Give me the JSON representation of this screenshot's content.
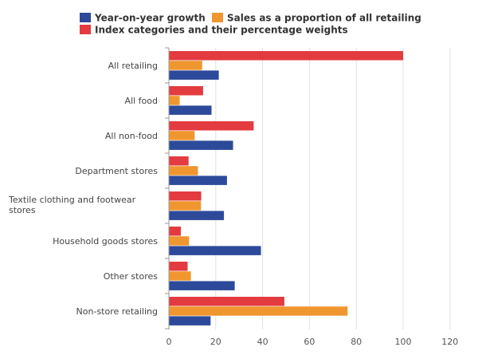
{
  "chart_data": {
    "type": "bar",
    "orientation": "horizontal",
    "categories": [
      "All retailing",
      "All food",
      "All non-food",
      "Department stores",
      "Textile clothing and footwear stores",
      "Household goods stores",
      "Other stores",
      "Non-store retailing"
    ],
    "series": [
      {
        "name": "Index categories and their percentage weights",
        "color": "#e33b3f",
        "values": [
          100,
          14.6,
          36.2,
          8.4,
          13.8,
          5.1,
          8.0,
          49.3
        ]
      },
      {
        "name": "Sales as a proportion of all retailing",
        "color": "#f0962f",
        "values": [
          14.2,
          4.6,
          11.0,
          12.4,
          13.7,
          8.6,
          9.4,
          76.3
        ]
      },
      {
        "name": "Year-on-year growth",
        "color": "#2d4a9a",
        "values": [
          21.3,
          18.2,
          27.4,
          24.8,
          23.5,
          39.3,
          28.1,
          17.8
        ]
      }
    ],
    "legend_order": [
      "Year-on-year growth",
      "Sales as a proportion of all retailing",
      "Index categories and their percentage weights"
    ],
    "legend_position": "top",
    "x_ticks": [
      0,
      20,
      40,
      60,
      80,
      100,
      120
    ],
    "xlim": [
      0,
      120
    ],
    "grid": true
  }
}
